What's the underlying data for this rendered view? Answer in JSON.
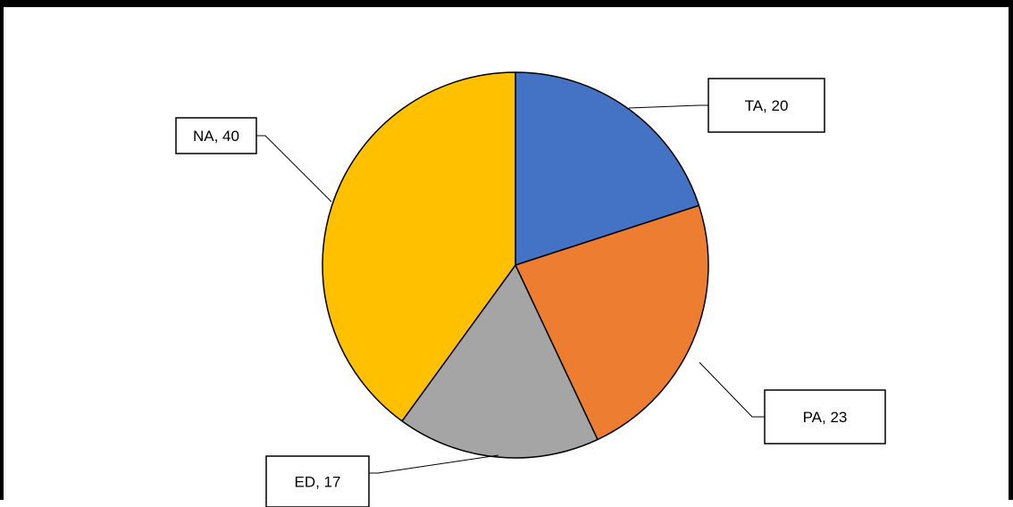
{
  "chart_data": {
    "type": "pie",
    "slices": [
      {
        "name": "TA",
        "value": 20,
        "label": "TA, 20",
        "color": "#4472C4"
      },
      {
        "name": "PA",
        "value": 23,
        "label": "PA, 23",
        "color": "#ED7D31"
      },
      {
        "name": "ED",
        "value": 17,
        "label": "ED, 17",
        "color": "#A5A5A5"
      },
      {
        "name": "NA",
        "value": 40,
        "label": "NA, 40",
        "color": "#FFC000"
      }
    ],
    "start_angle": "top (12 o'clock)",
    "direction": "clockwise",
    "legend": "none",
    "data_labels": "outside with leader lines, boxed"
  }
}
